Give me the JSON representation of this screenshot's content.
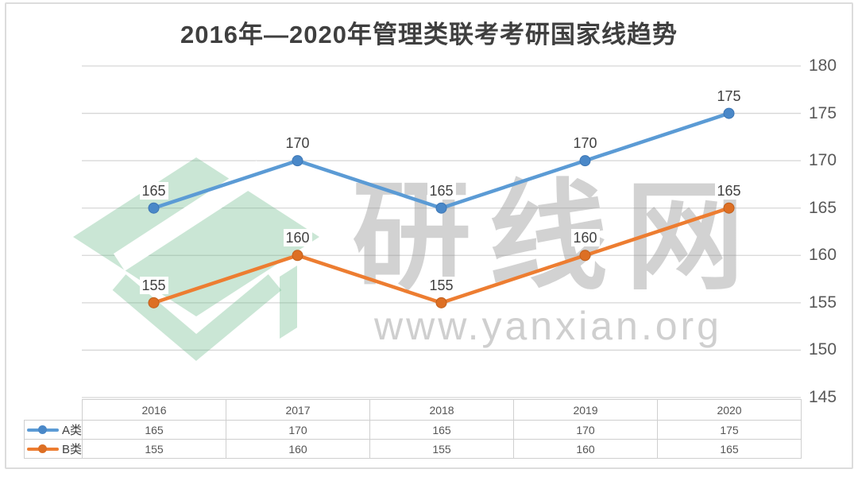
{
  "chart_data": {
    "type": "line",
    "title": "2016年—2020年管理类联考考研国家线趋势",
    "categories": [
      "2016",
      "2017",
      "2018",
      "2019",
      "2020"
    ],
    "series": [
      {
        "name": "A类",
        "values": [
          165,
          170,
          165,
          170,
          175
        ],
        "color": "#5B9BD5",
        "marker_color": "#4A88C8",
        "marker_edge": "#3D76B4"
      },
      {
        "name": "B类",
        "values": [
          155,
          160,
          155,
          160,
          165
        ],
        "color": "#ED7D31",
        "marker_color": "#DD6F24",
        "marker_edge": "#C05F1C"
      }
    ],
    "ylim": [
      145,
      180
    ],
    "yticks": [
      180,
      175,
      170,
      165,
      160,
      155,
      150,
      145
    ],
    "axis_side": "right",
    "grid": true,
    "data_labels": true,
    "legend_position": "data-table-left",
    "xlabel": "",
    "ylabel": ""
  },
  "watermark": {
    "text": "研线网",
    "url": "www.yanxian.org",
    "logo": "yanxian-diamond-logo",
    "logo_color": "#68B687"
  },
  "colors": {
    "gridline": "#d6d6d6",
    "axis_label": "#595959",
    "title": "#3f3f3f",
    "table_text": "#555555",
    "data_label": "#404040",
    "frame_border": "#dcdcdc"
  }
}
